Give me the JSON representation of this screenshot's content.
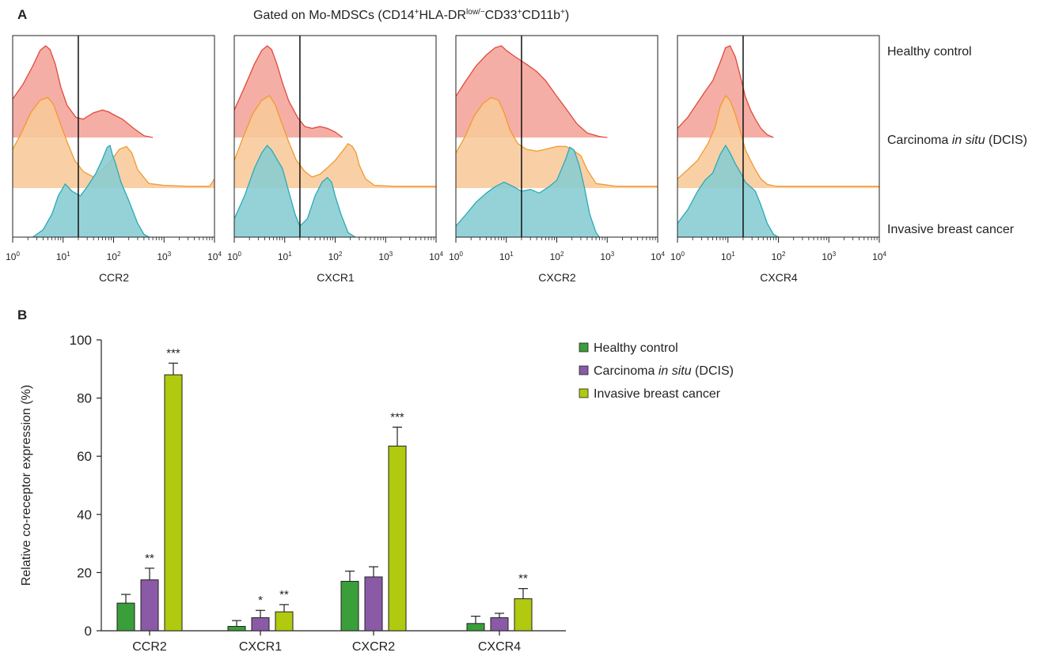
{
  "panel_a": {
    "label": "A",
    "gating_title": {
      "prefix": "Gated on Mo-MDSCs (CD14",
      "sup1": "+",
      "mid1": "HLA-DR",
      "sup2": "low/−",
      "mid2": "CD33",
      "sup3": "+",
      "mid3": "CD11b",
      "sup4": "+",
      "suffix": ")"
    },
    "row_labels": {
      "healthy": "Healthy control",
      "dcis_pre": "Carcinoma ",
      "dcis_ital": "in situ",
      "dcis_post": " (DCIS)",
      "invasive": "Invasive breast cancer"
    },
    "tick_base": "10",
    "tick_exponents": [
      "0",
      "1",
      "2",
      "3",
      "4"
    ],
    "gate_value": 20,
    "colors": {
      "healthy_fill": "#f4a39a",
      "healthy_line": "#e04a3a",
      "dcis_fill": "#f8c99a",
      "dcis_line": "#f29a2e",
      "invasive_fill": "#86ccd3",
      "invasive_line": "#2aaab6"
    }
  },
  "panel_b": {
    "label": "B"
  },
  "chart_data": [
    {
      "type": "area",
      "xlabel": "CCR2",
      "x_scale": "log",
      "xlim": [
        1,
        10000
      ],
      "series": [
        {
          "name": "Healthy control",
          "x": [
            1.0,
            1.6,
            2.5,
            3.5,
            4.5,
            5.5,
            7,
            9,
            12,
            18,
            25,
            40,
            60,
            80,
            100,
            150,
            250,
            400,
            600
          ],
          "y": [
            0.42,
            0.58,
            0.78,
            0.95,
            1.0,
            0.96,
            0.8,
            0.55,
            0.35,
            0.22,
            0.2,
            0.27,
            0.3,
            0.28,
            0.25,
            0.2,
            0.1,
            0.02,
            0
          ]
        },
        {
          "name": "Carcinoma in situ (DCIS)",
          "x": [
            1.0,
            1.5,
            2.3,
            3.5,
            5,
            6.5,
            8.5,
            12,
            17,
            25,
            40,
            60,
            90,
            130,
            180,
            230,
            300,
            500,
            1000,
            3000,
            8000,
            10000
          ],
          "y": [
            0.42,
            0.6,
            0.82,
            0.95,
            0.98,
            0.9,
            0.72,
            0.5,
            0.3,
            0.18,
            0.12,
            0.2,
            0.3,
            0.42,
            0.45,
            0.38,
            0.2,
            0.05,
            0.03,
            0.02,
            0.02,
            0.1
          ]
        },
        {
          "name": "Invasive breast cancer",
          "x": [
            2.5,
            4,
            6,
            8,
            11,
            15,
            22,
            30,
            45,
            60,
            75,
            85,
            95,
            110,
            140,
            200,
            300,
            400,
            500
          ],
          "y": [
            0,
            0.08,
            0.25,
            0.45,
            0.58,
            0.5,
            0.45,
            0.55,
            0.7,
            0.85,
            0.98,
            1.0,
            0.9,
            0.8,
            0.6,
            0.4,
            0.15,
            0.03,
            0
          ]
        }
      ]
    },
    {
      "type": "area",
      "xlabel": "CXCR1",
      "x_scale": "log",
      "xlim": [
        1,
        10000
      ],
      "series": [
        {
          "name": "Healthy control",
          "x": [
            1.0,
            1.6,
            2.5,
            3.5,
            4.5,
            5.5,
            7,
            9,
            12,
            18,
            25,
            35,
            50,
            70,
            100,
            140
          ],
          "y": [
            0.3,
            0.55,
            0.8,
            0.95,
            1.0,
            0.96,
            0.8,
            0.6,
            0.4,
            0.22,
            0.12,
            0.1,
            0.12,
            0.1,
            0.06,
            0
          ]
        },
        {
          "name": "Carcinoma in situ (DCIS)",
          "x": [
            1.0,
            1.5,
            2.3,
            3.5,
            5,
            6.5,
            8.5,
            12,
            17,
            25,
            35,
            50,
            70,
            100,
            140,
            180,
            220,
            260,
            300,
            400,
            600,
            1500,
            5000,
            10000
          ],
          "y": [
            0.3,
            0.55,
            0.8,
            0.95,
            1.0,
            0.9,
            0.72,
            0.5,
            0.3,
            0.18,
            0.12,
            0.15,
            0.22,
            0.3,
            0.4,
            0.48,
            0.45,
            0.38,
            0.25,
            0.1,
            0.03,
            0.02,
            0.02,
            0.02
          ]
        },
        {
          "name": "Invasive breast cancer",
          "x": [
            1.0,
            1.6,
            2.5,
            3.5,
            4.5,
            5.5,
            7,
            9,
            12,
            16,
            20,
            28,
            40,
            55,
            70,
            85,
            100,
            130,
            180,
            250
          ],
          "y": [
            0.2,
            0.45,
            0.75,
            0.92,
            1.0,
            0.95,
            0.85,
            0.75,
            0.5,
            0.25,
            0.12,
            0.2,
            0.45,
            0.6,
            0.65,
            0.6,
            0.45,
            0.25,
            0.05,
            0
          ]
        }
      ]
    },
    {
      "type": "area",
      "xlabel": "CXCR2",
      "x_scale": "log",
      "xlim": [
        1,
        10000
      ],
      "series": [
        {
          "name": "Healthy control",
          "x": [
            1.0,
            1.5,
            2.5,
            4,
            6,
            8,
            10,
            15,
            25,
            40,
            60,
            100,
            150,
            250,
            400,
            700,
            1000
          ],
          "y": [
            0.45,
            0.6,
            0.78,
            0.9,
            0.98,
            1.0,
            0.95,
            0.88,
            0.8,
            0.72,
            0.62,
            0.45,
            0.32,
            0.15,
            0.05,
            0.01,
            0
          ]
        },
        {
          "name": "Carcinoma in situ (DCIS)",
          "x": [
            1.0,
            1.5,
            2.3,
            3.5,
            5,
            7,
            9,
            12,
            17,
            25,
            40,
            60,
            100,
            150,
            200,
            300,
            400,
            600,
            1500,
            5000,
            10000
          ],
          "y": [
            0.38,
            0.55,
            0.78,
            0.92,
            0.98,
            0.95,
            0.82,
            0.62,
            0.48,
            0.42,
            0.4,
            0.42,
            0.45,
            0.45,
            0.42,
            0.35,
            0.2,
            0.05,
            0.02,
            0.02,
            0.02
          ]
        },
        {
          "name": "Invasive breast cancer",
          "x": [
            1.0,
            1.6,
            2.5,
            4,
            6,
            9,
            14,
            20,
            30,
            45,
            70,
            100,
            150,
            180,
            220,
            280,
            350,
            450,
            600,
            700
          ],
          "y": [
            0.12,
            0.25,
            0.38,
            0.48,
            0.55,
            0.6,
            0.55,
            0.5,
            0.52,
            0.48,
            0.55,
            0.62,
            0.85,
            0.98,
            0.95,
            0.78,
            0.55,
            0.25,
            0.05,
            0
          ]
        }
      ]
    },
    {
      "type": "area",
      "xlabel": "CXCR4",
      "x_scale": "log",
      "xlim": [
        1,
        10000
      ],
      "series": [
        {
          "name": "Healthy control",
          "x": [
            1.0,
            1.6,
            2.5,
            3.5,
            5,
            7,
            9,
            11,
            14,
            18,
            22,
            28,
            35,
            45,
            60,
            80
          ],
          "y": [
            0.1,
            0.22,
            0.38,
            0.5,
            0.62,
            0.82,
            0.98,
            1.0,
            0.88,
            0.65,
            0.45,
            0.3,
            0.2,
            0.1,
            0.03,
            0
          ]
        },
        {
          "name": "Carcinoma in situ (DCIS)",
          "x": [
            1.0,
            1.6,
            2.5,
            4,
            5.5,
            7,
            9,
            11,
            14,
            18,
            22,
            28,
            35,
            45,
            60,
            90,
            150,
            300,
            1000,
            10000
          ],
          "y": [
            0.1,
            0.2,
            0.3,
            0.48,
            0.65,
            0.88,
            1.0,
            0.95,
            0.8,
            0.6,
            0.42,
            0.3,
            0.2,
            0.1,
            0.04,
            0.02,
            0.02,
            0.02,
            0.02,
            0.02
          ]
        },
        {
          "name": "Invasive breast cancer",
          "x": [
            1.0,
            1.6,
            2.5,
            3.5,
            5,
            7,
            9,
            11,
            14,
            18,
            22,
            28,
            35,
            45,
            60,
            80,
            100
          ],
          "y": [
            0.15,
            0.3,
            0.5,
            0.62,
            0.7,
            0.9,
            1.0,
            0.92,
            0.8,
            0.7,
            0.6,
            0.55,
            0.5,
            0.35,
            0.15,
            0.03,
            0
          ]
        }
      ]
    },
    {
      "type": "bar",
      "ylabel": "Relative co-receptor expression (%)",
      "ylim": [
        0,
        100
      ],
      "yticks": [
        0,
        20,
        40,
        60,
        80,
        100
      ],
      "categories": [
        "CCR2",
        "CXCR1",
        "CXCR2",
        "CXCR4"
      ],
      "series": [
        {
          "name": "Healthy control",
          "color": "#3a9e3a",
          "values": [
            9.5,
            1.5,
            17,
            2.5
          ],
          "errors": [
            3,
            2,
            3.5,
            2.5
          ],
          "sig": [
            "",
            "",
            "",
            ""
          ]
        },
        {
          "name_pre": "Carcinoma ",
          "name_ital": "in situ",
          "name_post": " (DCIS)",
          "name": "Carcinoma in situ (DCIS)",
          "color": "#8a5aa6",
          "values": [
            17.5,
            4.5,
            18.5,
            4.5
          ],
          "errors": [
            4,
            2.5,
            3.5,
            1.5
          ],
          "sig": [
            "**",
            "*",
            "",
            ""
          ]
        },
        {
          "name": "Invasive breast cancer",
          "color": "#b1c90f",
          "values": [
            88,
            6.5,
            63.5,
            11
          ],
          "errors": [
            4,
            2.5,
            6.5,
            3.5
          ],
          "sig": [
            "***",
            "**",
            "***",
            "**"
          ]
        }
      ]
    }
  ]
}
